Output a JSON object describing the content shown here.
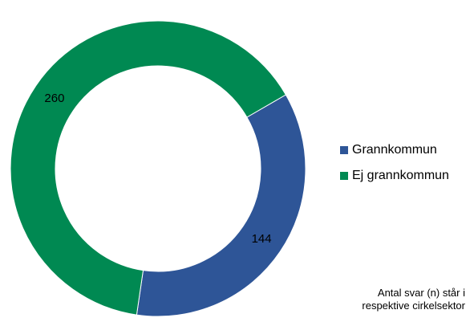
{
  "chart_data": {
    "type": "pie",
    "variant": "donut",
    "title": "",
    "categories": [
      "Grannkommun",
      "Ej grannkommun"
    ],
    "values": [
      144,
      260
    ],
    "data_labels": [
      "144",
      "260"
    ],
    "colors": [
      "#2E5597",
      "#008952"
    ],
    "legend_position": "right",
    "grid": false
  },
  "legend": {
    "items": [
      {
        "label": "Grannkommun",
        "color": "#2E5597"
      },
      {
        "label": "Ej grannkommun",
        "color": "#008952"
      }
    ]
  },
  "note": {
    "line1": "Antal svar (n) står i",
    "line2": "respektive cirkelsektor"
  }
}
